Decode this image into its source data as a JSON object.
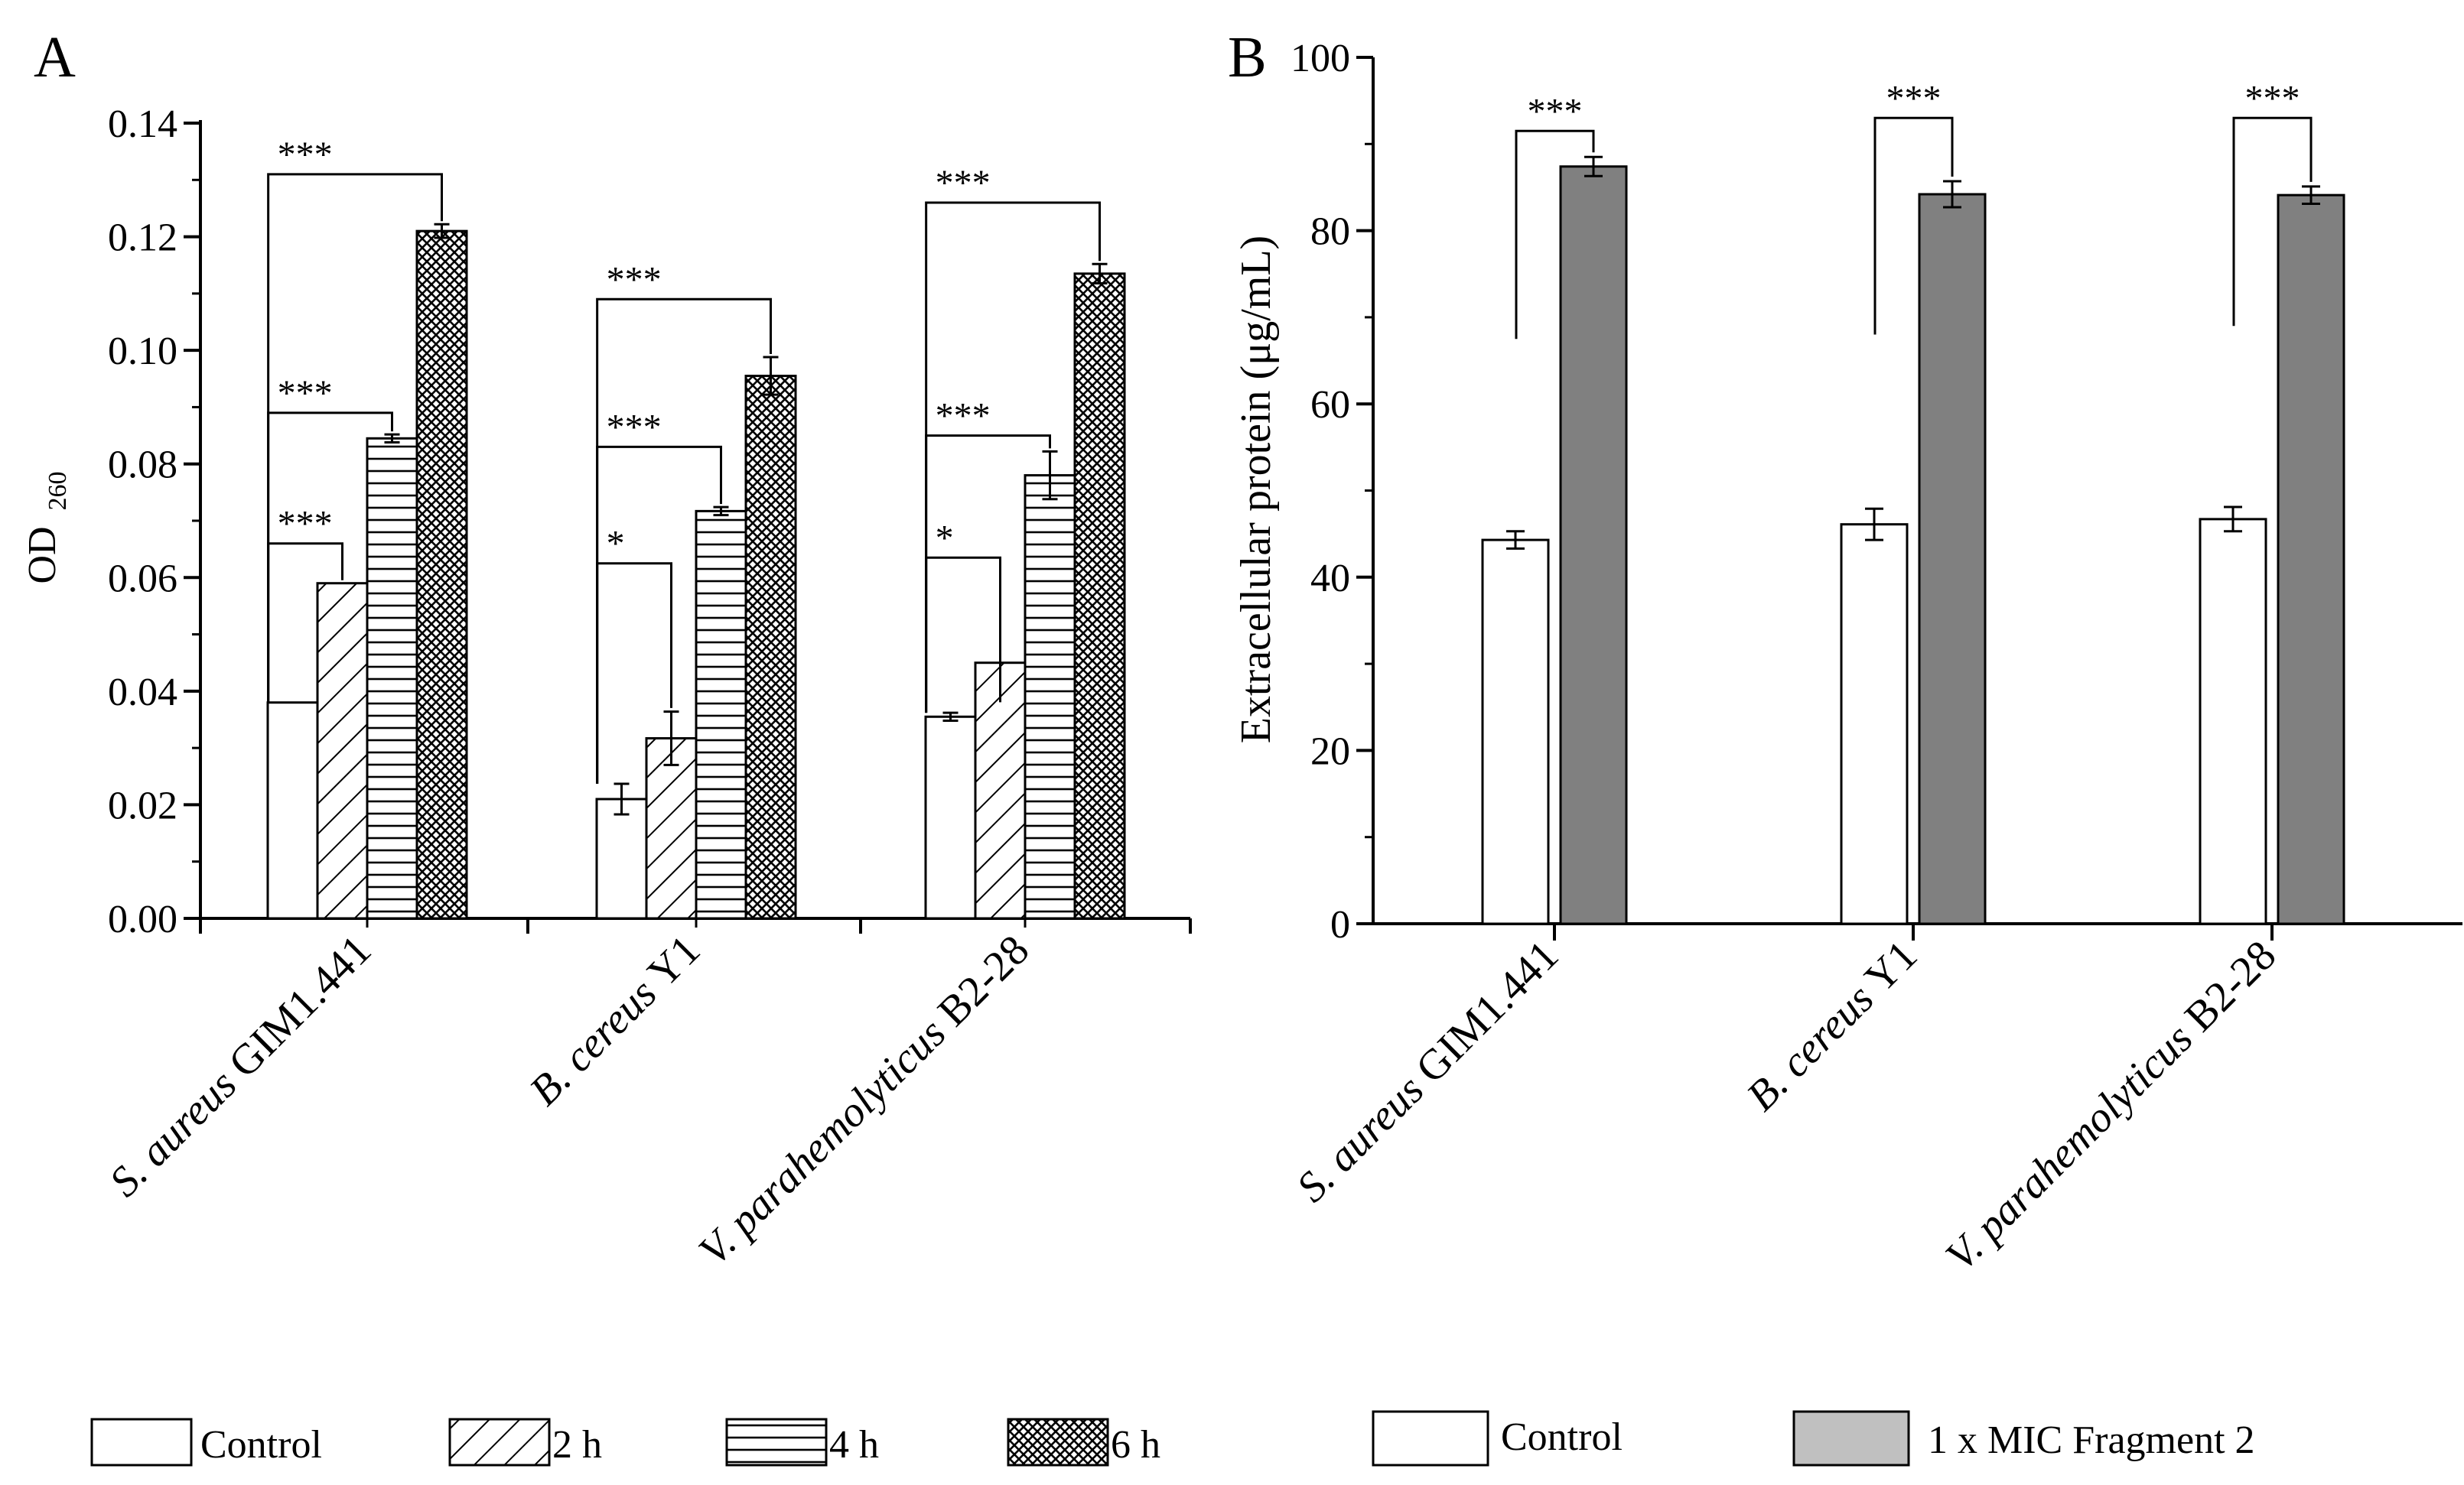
{
  "figure": {
    "panel_a_letter": "A",
    "panel_b_letter": "B",
    "categories": [
      {
        "italic": "S. aureus",
        "plain": " GIM1.441"
      },
      {
        "italic": "B. cereus",
        "plain": " Y1"
      },
      {
        "italic": "V. parahemolyticus",
        "plain": " B2-28"
      }
    ]
  },
  "chart_data": [
    {
      "type": "bar",
      "panel": "A",
      "title": "",
      "xlabel": "",
      "ylabel": "OD",
      "ylabel_subscript": "260",
      "ylim": [
        0,
        0.14
      ],
      "yticks": [
        "0.00",
        "0.02",
        "0.04",
        "0.06",
        "0.08",
        "0.10",
        "0.12",
        "0.14"
      ],
      "categories": [
        "S. aureus GIM1.441",
        "B. cereus Y1",
        "V. parahemolyticus B2-28"
      ],
      "series": [
        {
          "name": "Control",
          "pattern": "none",
          "values": [
            0.038,
            0.021,
            0.0355
          ],
          "errors": [
            0.0,
            0.0027,
            0.0007
          ]
        },
        {
          "name": "2 h",
          "pattern": "diagonal",
          "values": [
            0.059,
            0.0317,
            0.045
          ],
          "errors": [
            0.0,
            0.0047,
            0.0
          ]
        },
        {
          "name": "4 h",
          "pattern": "horizontal",
          "values": [
            0.0845,
            0.0717,
            0.078
          ],
          "errors": [
            0.0007,
            0.0007,
            0.0042
          ]
        },
        {
          "name": "6 h",
          "pattern": "crosshatch",
          "values": [
            0.121,
            0.0955,
            0.1135
          ],
          "errors": [
            0.0012,
            0.0033,
            0.0017
          ]
        }
      ],
      "significance": [
        {
          "category": 0,
          "from": 0,
          "to": 1,
          "label": "***",
          "level": 0.066
        },
        {
          "category": 0,
          "from": 0,
          "to": 2,
          "label": "***",
          "level": 0.089
        },
        {
          "category": 0,
          "from": 0,
          "to": 3,
          "label": "***",
          "level": 0.131
        },
        {
          "category": 1,
          "from": 0,
          "to": 1,
          "label": "*",
          "level": 0.0625
        },
        {
          "category": 1,
          "from": 0,
          "to": 2,
          "label": "***",
          "level": 0.083
        },
        {
          "category": 1,
          "from": 0,
          "to": 3,
          "label": "***",
          "level": 0.109
        },
        {
          "category": 2,
          "from": 0,
          "to": 1,
          "label": "*",
          "level": 0.0635
        },
        {
          "category": 2,
          "from": 0,
          "to": 2,
          "label": "***",
          "level": 0.085
        },
        {
          "category": 2,
          "from": 0,
          "to": 3,
          "label": "***",
          "level": 0.126
        }
      ],
      "legend_position": "bottom"
    },
    {
      "type": "bar",
      "panel": "B",
      "title": "",
      "xlabel": "",
      "ylabel": "Extracellular protein (μg/mL)",
      "ylim": [
        0,
        100
      ],
      "yticks": [
        "0",
        "20",
        "40",
        "60",
        "80",
        "100"
      ],
      "categories": [
        "S. aureus GIM1.441",
        "B. cereus Y1",
        "V. parahemolyticus B2-28"
      ],
      "series": [
        {
          "name": "Control",
          "color": "#ffffff",
          "values": [
            44.3,
            46.1,
            46.7
          ],
          "errors": [
            1.0,
            1.8,
            1.4
          ]
        },
        {
          "name": "1 x MIC Fragment 2",
          "color": "#808080",
          "values": [
            87.4,
            84.2,
            84.1
          ],
          "errors": [
            1.1,
            1.5,
            1.0
          ]
        }
      ],
      "significance": [
        {
          "category": 0,
          "label": "***",
          "level": 91.5,
          "left_drop_to": 67.5
        },
        {
          "category": 1,
          "label": "***",
          "level": 93.0,
          "left_drop_to": 68.0
        },
        {
          "category": 2,
          "label": "***",
          "level": 93.0,
          "left_drop_to": 69.0
        }
      ],
      "legend_swatch_color": "#c0c0c0",
      "legend_position": "bottom"
    }
  ]
}
